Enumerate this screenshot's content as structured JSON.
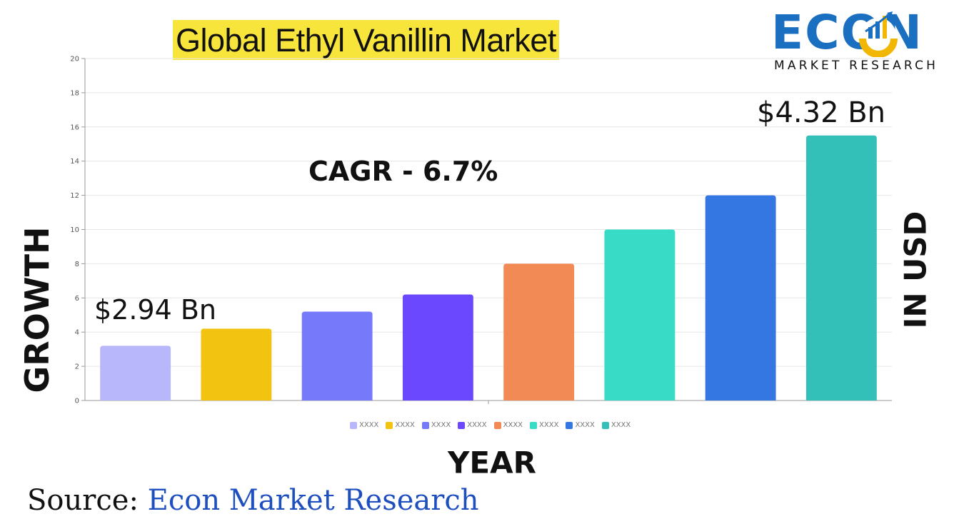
{
  "title": "Global Ethyl Vanillin Market",
  "logo": {
    "word": "ECON",
    "tagline": "MARKET RESEARCH"
  },
  "colors": {
    "title_highlight": "#f7e53b",
    "logo_blue": "#1a6fc0",
    "logo_gold": "#f2b705",
    "source_blue": "#1e4fbf"
  },
  "annotations": {
    "cagr": "CAGR - 6.7%",
    "start_value": "$2.94 Bn",
    "end_value": "$4.32 Bn"
  },
  "axis_titles": {
    "y": "GROWTH",
    "right": "IN USD",
    "x": "YEAR"
  },
  "source": {
    "prefix": "Source: ",
    "name": "Econ Market Research"
  },
  "chart_data": {
    "type": "bar",
    "title": "Global Ethyl Vanillin Market",
    "xlabel": "YEAR",
    "ylabel": "GROWTH",
    "ylim": [
      0,
      20
    ],
    "yticks": [
      0,
      2,
      4,
      6,
      8,
      10,
      12,
      14,
      16,
      18,
      20
    ],
    "grid": true,
    "legend_position": "bottom",
    "categories": [
      "XXXX",
      "XXXX",
      "XXXX",
      "XXXX",
      "XXXX",
      "XXXX",
      "XXXX",
      "XXXX"
    ],
    "values": [
      3.2,
      4.2,
      5.2,
      6.2,
      8.0,
      10.0,
      12.0,
      15.5
    ],
    "colors": [
      "#b9b7fb",
      "#f2c311",
      "#7779fb",
      "#6b48fd",
      "#f28a55",
      "#38dbc6",
      "#3477e2",
      "#32c0b8"
    ],
    "legend": [
      "XXXX",
      "XXXX",
      "XXXX",
      "XXXX",
      "XXXX",
      "XXXX",
      "XXXX",
      "XXXX"
    ]
  }
}
